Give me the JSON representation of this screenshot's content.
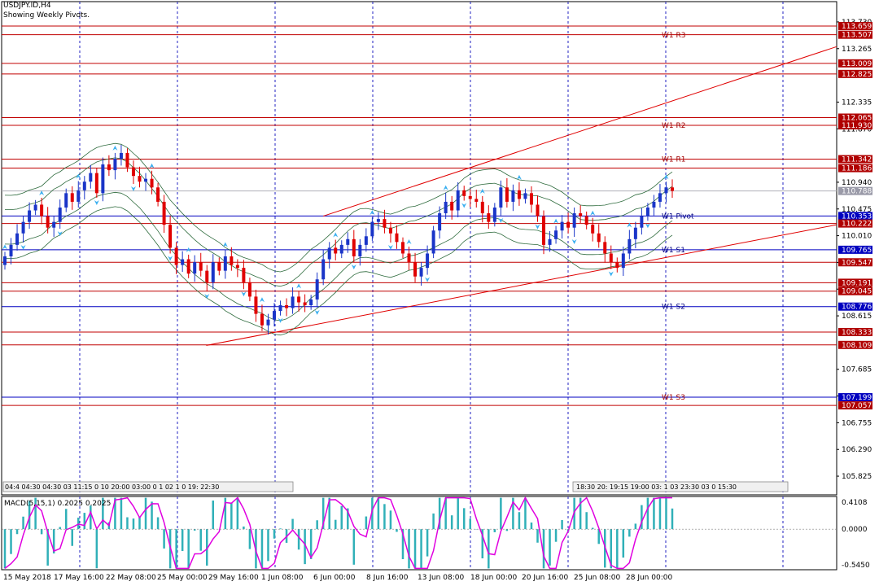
{
  "header": {
    "symbol_line": "USDJPY.ID,H4",
    "subtitle": "Showing Weekly Pivots."
  },
  "colors": {
    "bull": "#1a35c8",
    "bear": "#e00000",
    "bands": "#2e6b3d",
    "pivot_red": "#c00000",
    "pivot_blue": "#0000c0",
    "trend": "#e00000",
    "grid": "#2020c0",
    "arrow": "#3cb0f0",
    "macd_bar": "#30b0b8",
    "macd_signal": "#e000e0"
  },
  "chart_data": {
    "type": "candlestick",
    "price_axis": {
      "range": [
        105.5,
        113.8
      ],
      "ticks": [
        "113.730",
        "113.265",
        "112.335",
        "111.870",
        "110.940",
        "110.475",
        "110.010",
        "109.545",
        "109.080",
        "108.615",
        "107.685",
        "107.220",
        "106.755",
        "106.290",
        "105.825"
      ]
    },
    "price_tags": [
      {
        "value": "113.659",
        "color": "red"
      },
      {
        "value": "113.507",
        "color": "red"
      },
      {
        "value": "113.009",
        "color": "red"
      },
      {
        "value": "112.825",
        "color": "red"
      },
      {
        "value": "112.065",
        "color": "red"
      },
      {
        "value": "111.930",
        "color": "red"
      },
      {
        "value": "111.342",
        "color": "red"
      },
      {
        "value": "111.186",
        "color": "red"
      },
      {
        "value": "110.788",
        "color": "gray"
      },
      {
        "value": "110.353",
        "color": "blue"
      },
      {
        "value": "110.222",
        "color": "red"
      },
      {
        "value": "109.765",
        "color": "blue"
      },
      {
        "value": "109.547",
        "color": "red"
      },
      {
        "value": "109.191",
        "color": "red"
      },
      {
        "value": "109.045",
        "color": "red"
      },
      {
        "value": "108.776",
        "color": "blue"
      },
      {
        "value": "108.333",
        "color": "red"
      },
      {
        "value": "108.109",
        "color": "red"
      },
      {
        "value": "107.199",
        "color": "blue"
      },
      {
        "value": "107.057",
        "color": "red"
      }
    ],
    "pivot_labels": [
      {
        "label": "W1 R3",
        "value": 113.5
      },
      {
        "label": "W1 R2",
        "value": 111.93
      },
      {
        "label": "W1 R1",
        "value": 111.34
      },
      {
        "label": "W1 Pivot",
        "value": 110.353
      },
      {
        "label": "W1 S1",
        "value": 109.765
      },
      {
        "label": "W1 S2",
        "value": 108.776
      },
      {
        "label": "W1 S3",
        "value": 107.199
      }
    ],
    "trendlines": [
      {
        "from": [
          0.385,
          110.35
        ],
        "to": [
          1.0,
          113.3
        ]
      },
      {
        "from": [
          0.245,
          108.1
        ],
        "to": [
          1.0,
          110.2
        ]
      }
    ],
    "x_labels": [
      "15 May 2018",
      "17 May 16:00",
      "22 May 08:00",
      "25 May 00:00",
      "29 May 16:00",
      "1 Jun 08:00",
      "6 Jun 00:00",
      "8 Jun 16:00",
      "13 Jun 08:00",
      "18 Jun 00:00",
      "20 Jun 16:00",
      "25 Jun 08:00",
      "28 Jun 00:00"
    ],
    "event_strip_left": "04:4 04:30 04:30 03 11:15 0 10 20:00 03:00 0 1 02 1 0 19: 22:30",
    "event_strip_right": "18:30 20: 19:15 19:00 03: 1 03 23:30 03 0 15:30",
    "closes": [
      109.65,
      109.85,
      110.05,
      110.25,
      110.45,
      110.55,
      110.35,
      110.15,
      110.25,
      110.5,
      110.75,
      110.6,
      110.8,
      110.95,
      111.1,
      110.75,
      111.25,
      111.15,
      111.35,
      111.45,
      111.2,
      111.05,
      110.95,
      111.0,
      110.85,
      110.6,
      110.2,
      109.8,
      109.5,
      109.6,
      109.35,
      109.55,
      109.4,
      109.2,
      109.55,
      109.4,
      109.65,
      109.5,
      109.45,
      109.2,
      108.95,
      108.65,
      108.45,
      108.55,
      108.7,
      108.8,
      108.75,
      108.95,
      108.85,
      108.8,
      108.9,
      109.25,
      109.6,
      109.8,
      109.7,
      109.85,
      109.95,
      109.65,
      109.85,
      110.0,
      110.25,
      110.3,
      110.15,
      110.05,
      109.9,
      109.7,
      109.55,
      109.3,
      109.45,
      109.7,
      110.1,
      110.4,
      110.6,
      110.45,
      110.8,
      110.7,
      110.65,
      110.6,
      110.4,
      110.25,
      110.5,
      110.85,
      110.6,
      110.8,
      110.65,
      110.75,
      110.55,
      110.35,
      109.85,
      109.95,
      110.1,
      110.25,
      110.15,
      110.4,
      110.35,
      110.2,
      110.05,
      109.9,
      109.7,
      109.55,
      109.45,
      109.7,
      109.95,
      110.15,
      110.35,
      110.5,
      110.6,
      110.75,
      110.85,
      110.79
    ]
  },
  "macd": {
    "label": "MACD(5,15,1) 0.2025 0.2025",
    "ticks": [
      "0.4108",
      "0.0000",
      "-0.5450"
    ],
    "range": [
      -0.62,
      0.5
    ]
  }
}
